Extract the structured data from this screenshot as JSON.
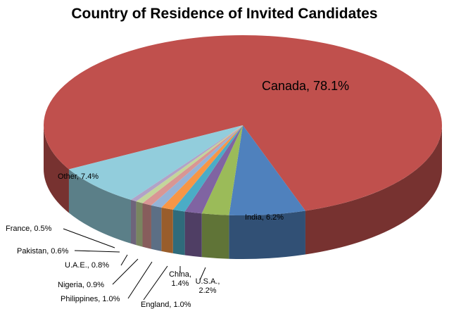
{
  "chart_data": {
    "type": "pie",
    "style": "3d",
    "title": "Country of Residence of Invited Candidates",
    "slices": [
      {
        "label": "Canada",
        "value": 78.1,
        "display": "Canada, 78.1%",
        "color": "#c0504d"
      },
      {
        "label": "India",
        "value": 6.2,
        "display": "India, 6.2%",
        "color": "#4f81bd"
      },
      {
        "label": "U.S.A.",
        "value": 2.2,
        "display": "U.S.A., 2.2%",
        "color": "#9bbb59"
      },
      {
        "label": "China",
        "value": 1.4,
        "display": "China, 1.4%",
        "color": "#8064a2"
      },
      {
        "label": "England",
        "value": 1.0,
        "display": "England, 1.0%",
        "color": "#4bacc6"
      },
      {
        "label": "Philippines",
        "value": 1.0,
        "display": "Philippines, 1.0%",
        "color": "#f79646"
      },
      {
        "label": "Nigeria",
        "value": 0.9,
        "display": "Nigeria, 0.9%",
        "color": "#95b3d7"
      },
      {
        "label": "U.A.E.",
        "value": 0.8,
        "display": "U.A.E., 0.8%",
        "color": "#d99694"
      },
      {
        "label": "Pakistan",
        "value": 0.6,
        "display": "Pakistan, 0.6%",
        "color": "#c3d69b"
      },
      {
        "label": "France",
        "value": 0.5,
        "display": "France, 0.5%",
        "color": "#b2a2c7"
      },
      {
        "label": "Other",
        "value": 7.4,
        "display": "Other, 7.4%",
        "color": "#92cddc"
      }
    ]
  }
}
